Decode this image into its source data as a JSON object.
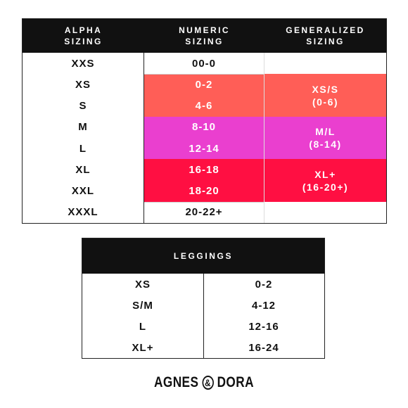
{
  "main_table": {
    "headers": [
      "ALPHA\nSIZING",
      "NUMERIC\nSIZING",
      "GENERALIZED\nSIZING"
    ],
    "rows": [
      {
        "alpha": "XXS",
        "numeric": "00-0"
      },
      {
        "alpha": "XS",
        "numeric": "0-2"
      },
      {
        "alpha": "S",
        "numeric": "4-6"
      },
      {
        "alpha": "M",
        "numeric": "8-10"
      },
      {
        "alpha": "L",
        "numeric": "12-14"
      },
      {
        "alpha": "XL",
        "numeric": "16-18"
      },
      {
        "alpha": "XXL",
        "numeric": "18-20"
      },
      {
        "alpha": "XXXL",
        "numeric": "20-22+"
      }
    ],
    "generalized": [
      {
        "label": "",
        "rows": 1,
        "color": "#ffffff"
      },
      {
        "label": "XS/S\n(0-6)",
        "rows": 2,
        "color": "#ff5e57"
      },
      {
        "label": "M/L\n(8-14)",
        "rows": 2,
        "color": "#ea3fcf"
      },
      {
        "label": "XL+\n(16-20+)",
        "rows": 2,
        "color": "#ff0f42"
      },
      {
        "label": "",
        "rows": 1,
        "color": "#ffffff"
      }
    ]
  },
  "leggings_table": {
    "header": "LEGGINGS",
    "rows": [
      {
        "alpha": "XS",
        "numeric": "0-2"
      },
      {
        "alpha": "S/M",
        "numeric": "4-12"
      },
      {
        "alpha": "L",
        "numeric": "12-16"
      },
      {
        "alpha": "XL+",
        "numeric": "16-24"
      }
    ]
  },
  "logo": {
    "left": "AGNES",
    "ampersand": "&",
    "right": "DORA"
  }
}
